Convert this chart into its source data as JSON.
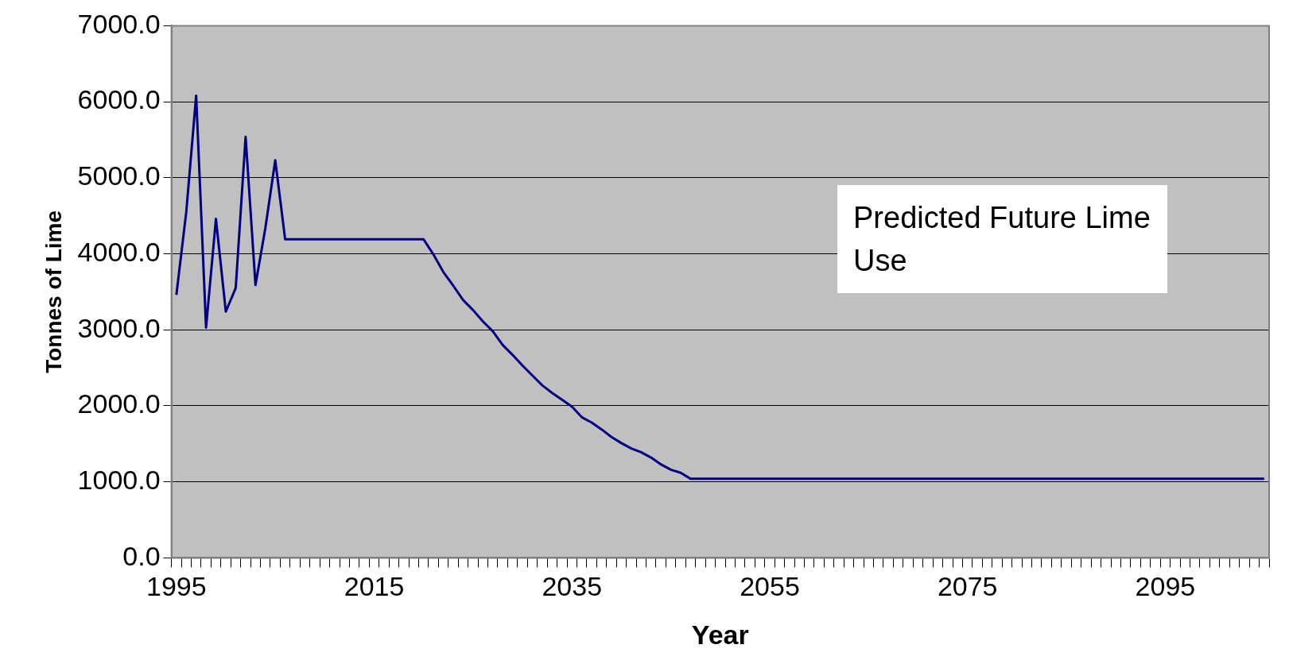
{
  "chart_data": {
    "type": "line",
    "xlabel": "Year",
    "ylabel": "Tonnes of Lime",
    "categories": [
      "1995",
      null,
      null,
      null,
      null,
      null,
      null,
      null,
      null,
      null,
      null,
      null,
      null,
      null,
      null,
      null,
      null,
      null,
      null,
      null,
      "2015",
      null,
      null,
      null,
      null,
      null,
      null,
      null,
      null,
      null,
      null,
      null,
      null,
      null,
      null,
      null,
      null,
      null,
      null,
      null,
      "2035",
      null,
      null,
      null,
      null,
      null,
      null,
      null,
      null,
      null,
      null,
      null,
      null,
      null,
      null,
      null,
      null,
      null,
      null,
      null,
      "2055",
      null,
      null,
      null,
      null,
      null,
      null,
      null,
      null,
      null,
      null,
      null,
      null,
      null,
      null,
      null,
      null,
      null,
      null,
      null,
      "2075",
      null,
      null,
      null,
      null,
      null,
      null,
      null,
      null,
      null,
      null,
      null,
      null,
      null,
      null,
      null,
      null,
      null,
      null,
      null,
      "2095",
      null,
      null,
      null,
      null,
      null,
      null,
      null,
      null,
      null,
      null
    ],
    "series": [
      {
        "color": "#000080",
        "values": [
          3460,
          4550,
          6080,
          3030,
          4460,
          3240,
          3550,
          5540,
          3590,
          4340,
          5230,
          4190,
          4190,
          4190,
          4190,
          4190,
          4190,
          4190,
          4190,
          4190,
          4190,
          4190,
          4190,
          4190,
          4190,
          4190,
          3990,
          3760,
          3580,
          3390,
          3260,
          3110,
          2980,
          2800,
          2670,
          2530,
          2400,
          2270,
          2170,
          2080,
          1990,
          1850,
          1780,
          1690,
          1590,
          1510,
          1440,
          1390,
          1320,
          1230,
          1160,
          1120,
          1040,
          1040,
          1040,
          1040,
          1040,
          1040,
          1040,
          1040,
          1040,
          1040,
          1040,
          1040,
          1040,
          1040,
          1040,
          1040,
          1040,
          1040,
          1040,
          1040,
          1040,
          1040,
          1040,
          1040,
          1040,
          1040,
          1040,
          1040,
          1040,
          1040,
          1040,
          1040,
          1040,
          1040,
          1040,
          1040,
          1040,
          1040,
          1040,
          1040,
          1040,
          1040,
          1040,
          1040,
          1040,
          1040,
          1040,
          1040,
          1040,
          1040,
          1040,
          1040,
          1040,
          1040,
          1040,
          1040,
          1040,
          1040,
          1040
        ]
      }
    ],
    "ylim": [
      0,
      7000
    ],
    "yticks": [
      {
        "value": 0,
        "label": "0.0"
      },
      {
        "value": 1000,
        "label": "1000.0"
      },
      {
        "value": 2000,
        "label": "2000.0"
      },
      {
        "value": 3000,
        "label": "3000.0"
      },
      {
        "value": 4000,
        "label": "4000.0"
      },
      {
        "value": 5000,
        "label": "5000.0"
      },
      {
        "value": 6000,
        "label": "6000.0"
      },
      {
        "value": 7000,
        "label": "7000.0"
      }
    ],
    "grid": "y",
    "legend": false,
    "marker": "none",
    "line_style": "solid",
    "annotations": [
      "Predicted Future Lime Use"
    ]
  }
}
